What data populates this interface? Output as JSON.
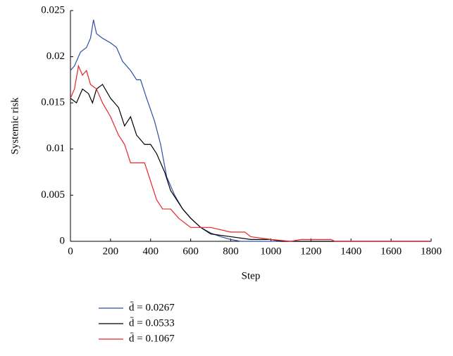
{
  "chart_data": {
    "type": "line",
    "xlabel": "Step",
    "ylabel": "Systemic risk",
    "xlim": [
      0,
      1800
    ],
    "xticks": [
      0,
      200,
      400,
      600,
      800,
      1000,
      1200,
      1400,
      1600,
      1800
    ],
    "ylim": [
      0,
      0.025
    ],
    "yticks": [
      0,
      0.005,
      0.01,
      0.015,
      0.02,
      0.025
    ],
    "series": [
      {
        "name": "d̄ = 0.0267",
        "color": "#2f4fa8",
        "x": [
          0,
          20,
          50,
          80,
          100,
          115,
          130,
          160,
          200,
          230,
          260,
          300,
          330,
          350,
          380,
          420,
          450,
          480,
          520,
          560,
          600,
          650,
          700,
          750,
          800,
          850,
          1800
        ],
        "values": [
          0.0185,
          0.019,
          0.0205,
          0.021,
          0.022,
          0.024,
          0.0225,
          0.022,
          0.0215,
          0.021,
          0.0195,
          0.0185,
          0.0175,
          0.0175,
          0.0155,
          0.013,
          0.0105,
          0.007,
          0.005,
          0.0035,
          0.0025,
          0.0015,
          0.0009,
          0.0005,
          0.0002,
          0,
          0
        ]
      },
      {
        "name": "d̄ = 0.0533",
        "color": "#000000",
        "x": [
          0,
          30,
          60,
          90,
          110,
          130,
          160,
          200,
          240,
          270,
          300,
          330,
          370,
          400,
          430,
          470,
          500,
          530,
          560,
          600,
          650,
          700,
          800,
          900,
          1000,
          1050,
          1800
        ],
        "values": [
          0.0155,
          0.015,
          0.0165,
          0.016,
          0.015,
          0.0165,
          0.017,
          0.0155,
          0.0145,
          0.0125,
          0.0135,
          0.0115,
          0.0105,
          0.0105,
          0.0095,
          0.0075,
          0.0055,
          0.0045,
          0.0035,
          0.0025,
          0.0015,
          0.0008,
          0.0005,
          0.0002,
          0.0002,
          0,
          0
        ]
      },
      {
        "name": "d̄ = 0.1067",
        "color": "#e8262a",
        "x": [
          0,
          20,
          40,
          60,
          80,
          100,
          130,
          160,
          200,
          240,
          270,
          300,
          340,
          370,
          400,
          430,
          460,
          500,
          540,
          600,
          700,
          800,
          870,
          900,
          1000,
          1100,
          1150,
          1300,
          1320,
          1800
        ],
        "values": [
          0.0155,
          0.0165,
          0.019,
          0.018,
          0.0185,
          0.017,
          0.0165,
          0.015,
          0.0135,
          0.0115,
          0.0105,
          0.0085,
          0.0085,
          0.0085,
          0.0065,
          0.0045,
          0.0035,
          0.0035,
          0.0025,
          0.0015,
          0.0015,
          0.001,
          0.001,
          0.0005,
          0.0002,
          0,
          0.0002,
          0.0002,
          0,
          0
        ]
      }
    ]
  }
}
